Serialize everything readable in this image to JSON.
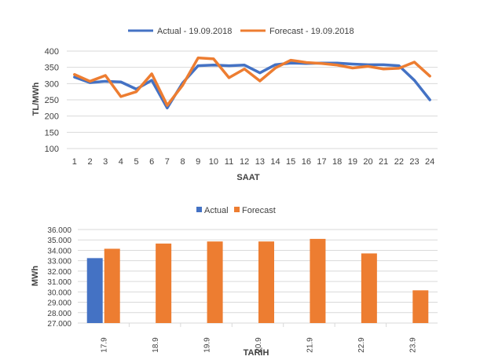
{
  "colors": {
    "actual": "#4472C4",
    "forecast": "#ED7D31",
    "grid": "#D9D9D9",
    "text": "#404040"
  },
  "chart_data": [
    {
      "type": "line",
      "title": "",
      "xlabel": "SAAT",
      "ylabel": "TL/MWh",
      "ylim": [
        100,
        400
      ],
      "yticks": [
        "100",
        "150",
        "200",
        "250",
        "300",
        "350",
        "400"
      ],
      "grid": true,
      "legend": "top-center",
      "categories": [
        "1",
        "2",
        "3",
        "4",
        "5",
        "6",
        "7",
        "8",
        "9",
        "10",
        "11",
        "12",
        "13",
        "14",
        "15",
        "16",
        "17",
        "18",
        "19",
        "20",
        "21",
        "22",
        "23",
        "24"
      ],
      "series": [
        {
          "name": "Actual - 19.09.2018",
          "color": "#4472C4",
          "values": [
            320,
            303,
            307,
            305,
            283,
            310,
            225,
            302,
            355,
            357,
            355,
            357,
            333,
            358,
            363,
            362,
            363,
            363,
            360,
            358,
            358,
            355,
            310,
            250
          ]
        },
        {
          "name": "Forecast - 19.09.2018",
          "color": "#ED7D31",
          "values": [
            328,
            307,
            325,
            260,
            275,
            330,
            233,
            295,
            379,
            376,
            318,
            345,
            308,
            348,
            372,
            365,
            362,
            357,
            348,
            353,
            345,
            347,
            366,
            323
          ]
        }
      ]
    },
    {
      "type": "bar",
      "title": "",
      "xlabel": "TARİH",
      "ylabel": "MWh",
      "ylim": [
        27000,
        36000
      ],
      "yticks": [
        "27.000",
        "28.000",
        "29.000",
        "30.000",
        "31.000",
        "32.000",
        "33.000",
        "34.000",
        "35.000",
        "36.000"
      ],
      "grid": true,
      "legend": "top-center",
      "categories": [
        "17.9",
        "18.9",
        "19.9",
        "20.9",
        "21.9",
        "22.9",
        "23.9"
      ],
      "series": [
        {
          "name": "Actual",
          "color": "#4472C4",
          "values": [
            33250,
            null,
            null,
            null,
            null,
            null,
            null
          ]
        },
        {
          "name": "Forecast",
          "color": "#ED7D31",
          "values": [
            34150,
            34650,
            34850,
            34850,
            35100,
            33700,
            30150
          ]
        }
      ]
    }
  ]
}
